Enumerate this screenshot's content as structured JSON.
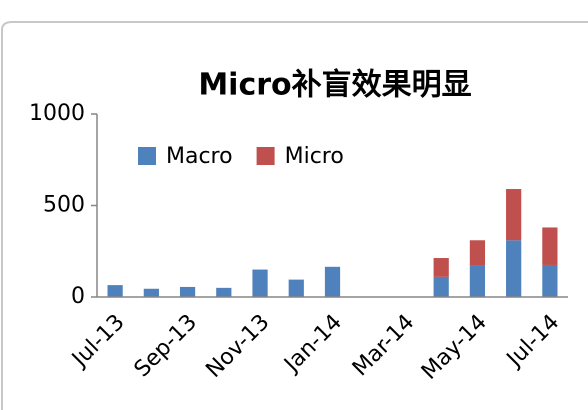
{
  "chart_data": {
    "type": "stacked_bar",
    "title": "Micro补盲效果明显",
    "categories": [
      "Jul-13",
      null,
      "Sep-13",
      null,
      "Nov-13",
      null,
      "Jan-14",
      null,
      "Mar-14",
      null,
      "May-14",
      null,
      "Jul-14"
    ],
    "series": [
      {
        "name": "Macro",
        "color": "#4f81bd",
        "values": [
          65,
          45,
          55,
          50,
          150,
          95,
          165,
          null,
          null,
          110,
          170,
          310,
          175
        ]
      },
      {
        "name": "Micro",
        "color": "#c0504d",
        "values": [
          0,
          0,
          0,
          0,
          0,
          0,
          0,
          null,
          null,
          103,
          140,
          280,
          205
        ]
      }
    ],
    "ylim": [
      0,
      1000
    ],
    "yticks": [
      0,
      500,
      1000
    ],
    "legend": "top-left"
  }
}
